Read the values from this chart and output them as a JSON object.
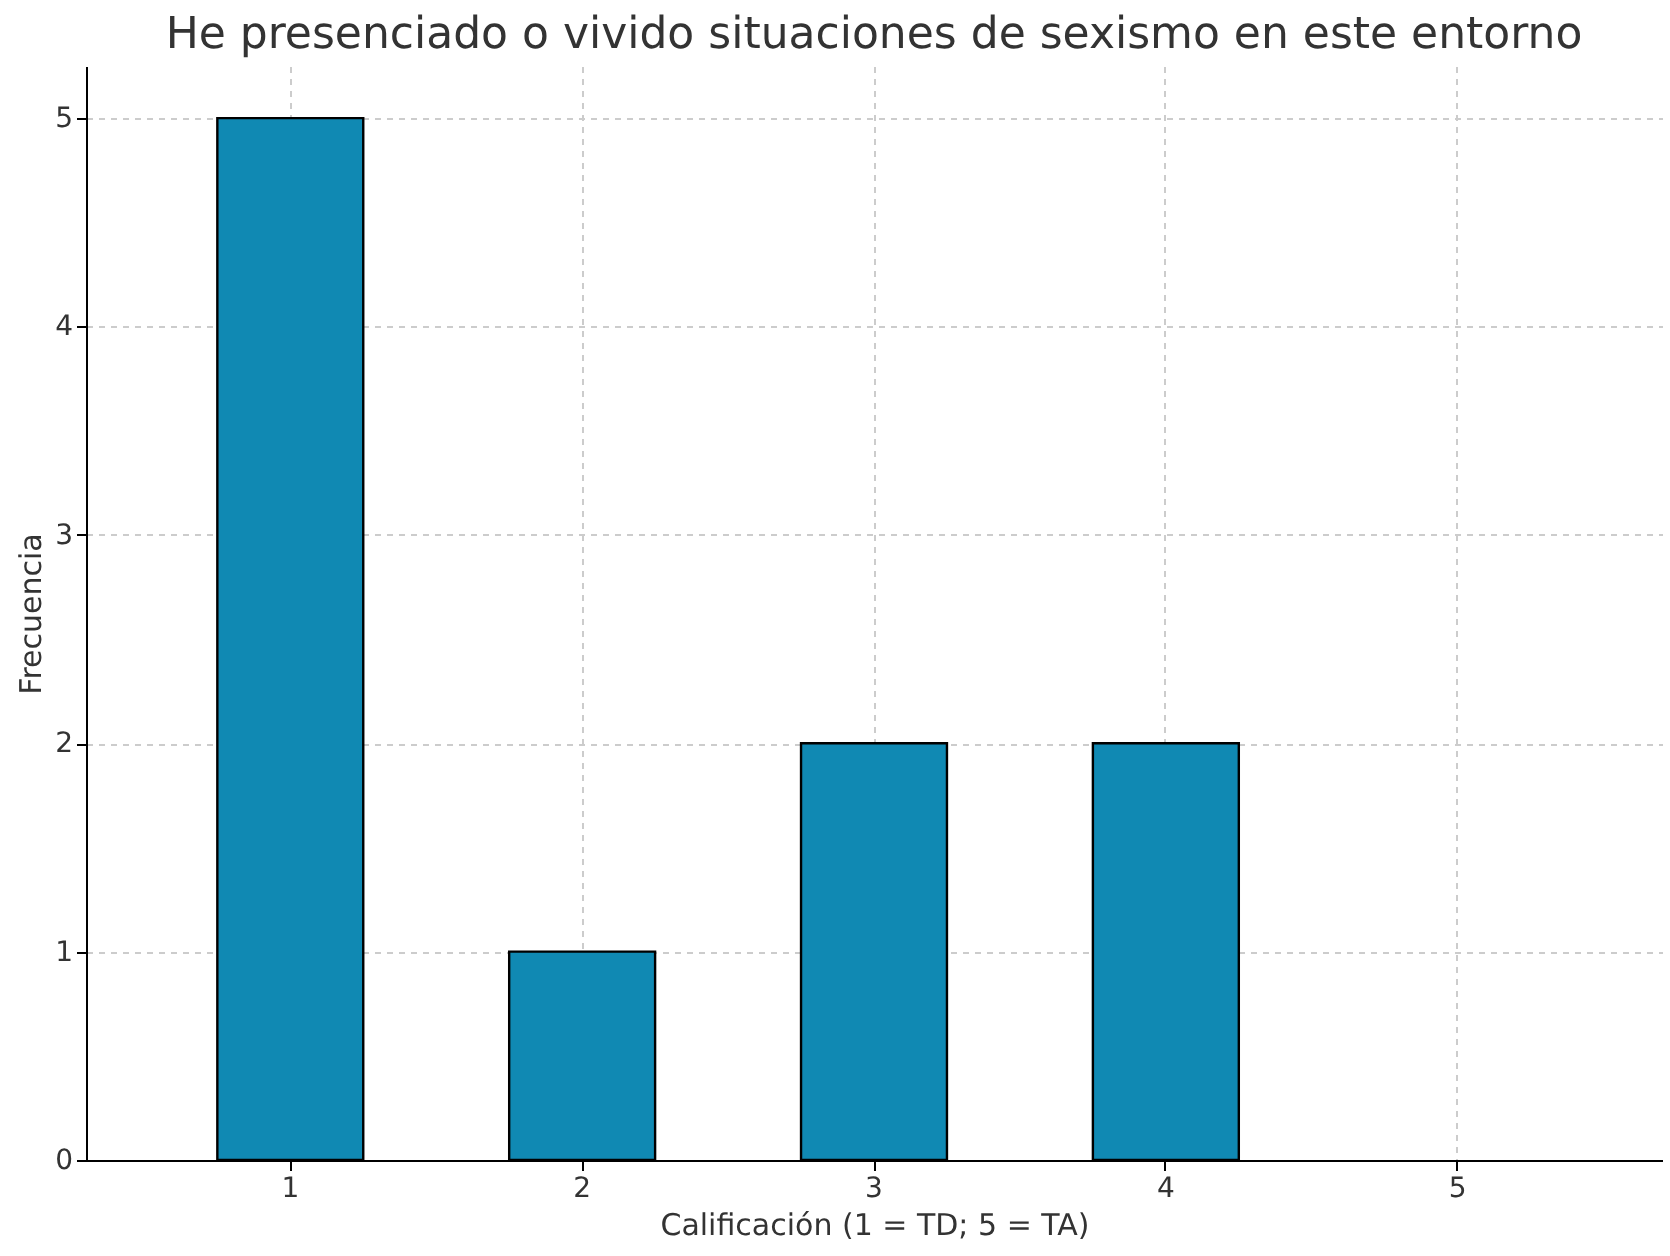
{
  "chart_data": {
    "type": "bar",
    "title": "He presenciado o vivido situaciones de sexismo en este entorno",
    "xlabel": "Calificación (1 = TD; 5 = TA)",
    "ylabel": "Frecuencia",
    "categories": [
      "1",
      "2",
      "3",
      "4",
      "5"
    ],
    "values": [
      5,
      1,
      2,
      2,
      0
    ],
    "color": "#1089b3",
    "ylim": [
      0,
      5.25
    ],
    "yticks": [
      0,
      1,
      2,
      3,
      4,
      5
    ],
    "grid": true
  }
}
